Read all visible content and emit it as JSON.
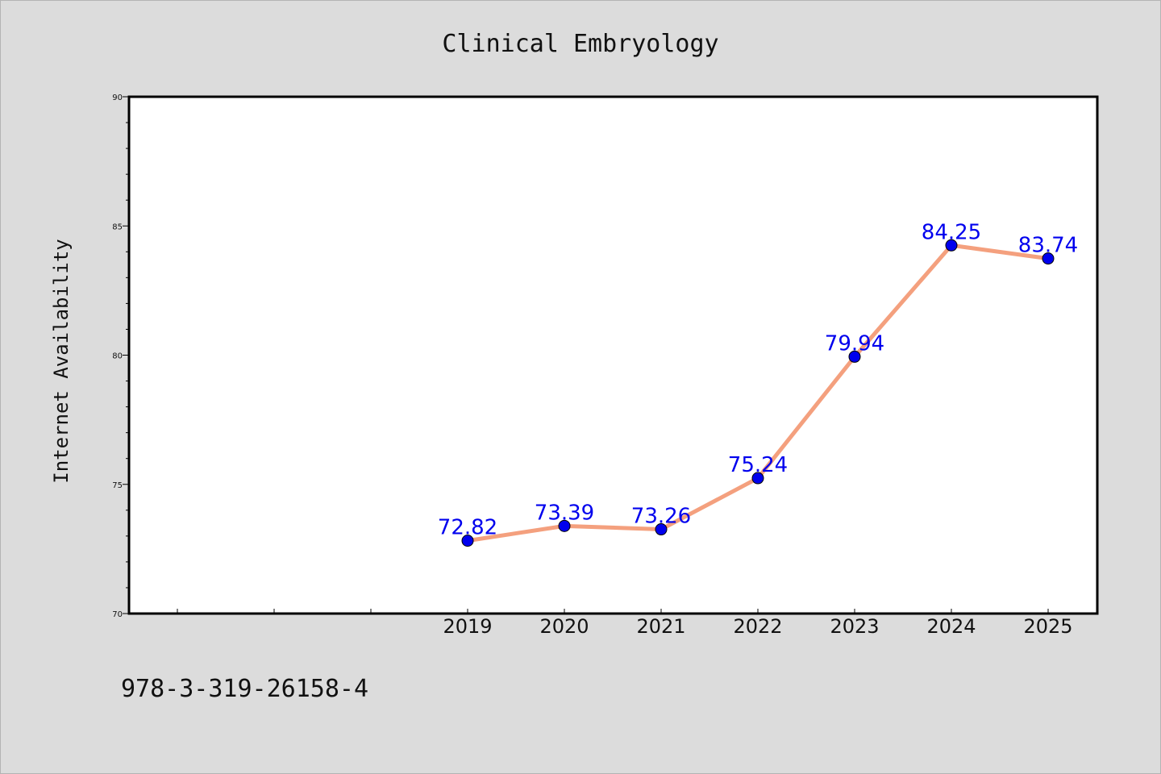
{
  "chart_data": {
    "type": "line",
    "title": "Clinical Embryology",
    "xlabel": "",
    "ylabel": "Internet Availability",
    "categories": [
      "2019",
      "2020",
      "2021",
      "2022",
      "2023",
      "2024",
      "2025"
    ],
    "x_axis_padding_slots": 3,
    "series": [
      {
        "values": [
          72.82,
          73.39,
          73.26,
          75.24,
          79.94,
          84.25,
          83.74
        ],
        "data_labels": [
          "72.82",
          "73.39",
          "73.26",
          "75.24",
          "79.94",
          "84.25",
          "83.74"
        ],
        "line_color": "#f4a07e",
        "marker_color": "#0000ee",
        "label_color": "#0000ee"
      }
    ],
    "ylim": [
      70,
      90
    ],
    "y_major_ticks": [
      "70",
      "75",
      "80",
      "85",
      "90"
    ],
    "grid": false,
    "legend": "none"
  },
  "footer_text": "978-3-319-26158-4",
  "colors": {
    "background": "#dcdcdc",
    "plot_background": "#ffffff",
    "axes": "#000000"
  }
}
